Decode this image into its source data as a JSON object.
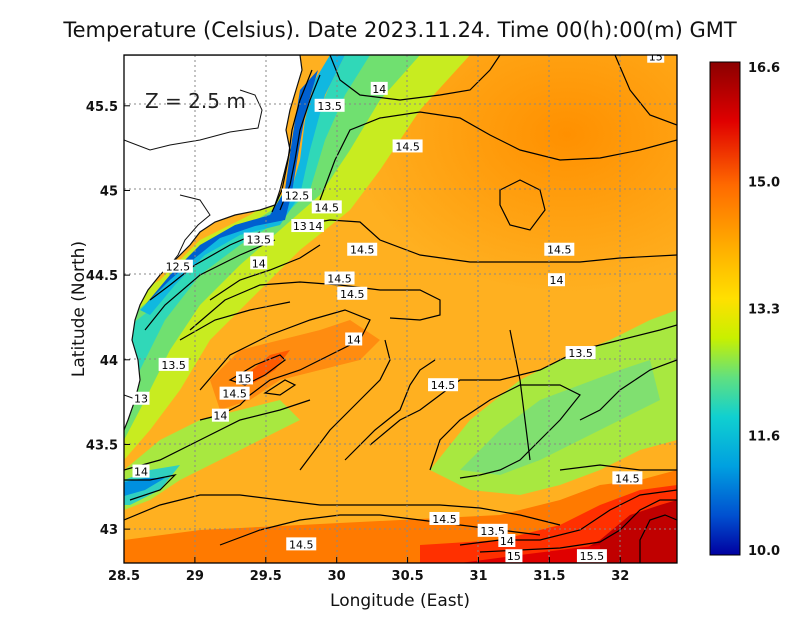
{
  "title": "Temperature (Celsius). Date 2023.11.24. Time 00(h):00(m) GMT",
  "map_annotation": "Z = 2.5 m",
  "colorbar": {
    "ticks": [
      "16.6",
      "15.0",
      "13.3",
      "11.6",
      "10.0"
    ],
    "colors": [
      "#8b0000",
      "#e00000",
      "#ff8c00",
      "#ffd700",
      "#c8f000",
      "#40e0a0",
      "#00c8d8",
      "#0080e0",
      "#0000a0"
    ]
  },
  "chart_data": {
    "type": "heatmap",
    "title": "Temperature (Celsius). Date 2023.11.24. Time 00(h):00(m) GMT",
    "xlabel": "Longitude (East)",
    "ylabel": "Latitude (North)",
    "xlim": [
      28.5,
      32.4
    ],
    "ylim": [
      42.8,
      45.8
    ],
    "x_ticks": [
      "28.5",
      "29",
      "29.5",
      "30",
      "30.5",
      "31",
      "31.5",
      "32"
    ],
    "y_ticks": [
      "45.5",
      "45",
      "44.5",
      "44",
      "43.5",
      "43"
    ],
    "value_range": [
      10.0,
      16.6
    ],
    "grid": true,
    "contour_labels": [
      {
        "text": "15",
        "lon": 32.25,
        "lat": 45.79
      },
      {
        "text": "14",
        "lon": 30.3,
        "lat": 45.6
      },
      {
        "text": "13.5",
        "lon": 29.95,
        "lat": 45.5
      },
      {
        "text": "14.5",
        "lon": 30.5,
        "lat": 45.26
      },
      {
        "text": "12.5",
        "lon": 29.72,
        "lat": 44.97
      },
      {
        "text": "14.5",
        "lon": 29.93,
        "lat": 44.9
      },
      {
        "text": "13",
        "lon": 29.74,
        "lat": 44.79
      },
      {
        "text": "14",
        "lon": 29.85,
        "lat": 44.79
      },
      {
        "text": "13.5",
        "lon": 29.45,
        "lat": 44.71
      },
      {
        "text": "14.5",
        "lon": 30.18,
        "lat": 44.65
      },
      {
        "text": "14.5",
        "lon": 31.57,
        "lat": 44.65
      },
      {
        "text": "14",
        "lon": 29.45,
        "lat": 44.57
      },
      {
        "text": "12.5",
        "lon": 28.88,
        "lat": 44.55
      },
      {
        "text": "14.5",
        "lon": 30.02,
        "lat": 44.48
      },
      {
        "text": "14",
        "lon": 31.55,
        "lat": 44.47
      },
      {
        "text": "14.5",
        "lon": 30.11,
        "lat": 44.39
      },
      {
        "text": "14",
        "lon": 30.12,
        "lat": 44.12
      },
      {
        "text": "13.5",
        "lon": 31.72,
        "lat": 44.04
      },
      {
        "text": "13.5",
        "lon": 28.85,
        "lat": 43.97
      },
      {
        "text": "15",
        "lon": 29.35,
        "lat": 43.89
      },
      {
        "text": "14.5",
        "lon": 30.75,
        "lat": 43.85
      },
      {
        "text": "14.5",
        "lon": 29.28,
        "lat": 43.8
      },
      {
        "text": "13",
        "lon": 28.62,
        "lat": 43.77
      },
      {
        "text": "14",
        "lon": 29.18,
        "lat": 43.67
      },
      {
        "text": "14",
        "lon": 28.62,
        "lat": 43.34
      },
      {
        "text": "14.5",
        "lon": 32.05,
        "lat": 43.3
      },
      {
        "text": "14.5",
        "lon": 30.76,
        "lat": 43.06
      },
      {
        "text": "13.5",
        "lon": 31.1,
        "lat": 42.99
      },
      {
        "text": "14",
        "lon": 31.2,
        "lat": 42.93
      },
      {
        "text": "14.5",
        "lon": 29.75,
        "lat": 42.91
      },
      {
        "text": "15",
        "lon": 31.25,
        "lat": 42.84
      },
      {
        "text": "15.5",
        "lon": 31.8,
        "lat": 42.84
      }
    ]
  }
}
